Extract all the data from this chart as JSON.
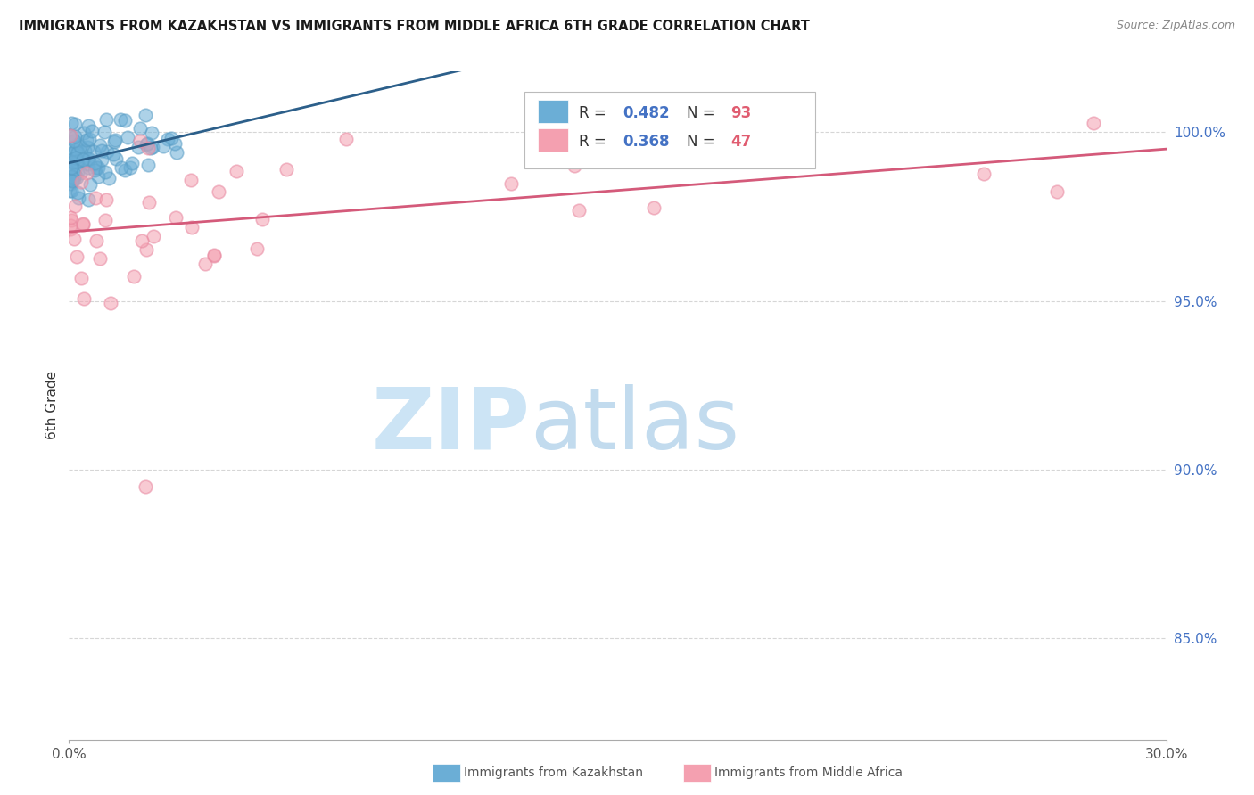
{
  "title": "IMMIGRANTS FROM KAZAKHSTAN VS IMMIGRANTS FROM MIDDLE AFRICA 6TH GRADE CORRELATION CHART",
  "source": "Source: ZipAtlas.com",
  "ylabel": "6th Grade",
  "y_ticks": [
    85.0,
    90.0,
    95.0,
    100.0
  ],
  "x_min": 0.0,
  "x_max": 30.0,
  "y_min": 82.0,
  "y_max": 101.8,
  "blue_R": 0.482,
  "blue_N": 93,
  "pink_R": 0.368,
  "pink_N": 47,
  "blue_color": "#6baed6",
  "blue_edge_color": "#5a9ec6",
  "blue_line_color": "#2c5f8a",
  "pink_color": "#f4a0b0",
  "pink_edge_color": "#e888a0",
  "pink_line_color": "#d45a7a",
  "legend_R_color": "#4472c4",
  "legend_N_color": "#e05c70",
  "background_color": "#ffffff",
  "grid_color": "#cccccc"
}
